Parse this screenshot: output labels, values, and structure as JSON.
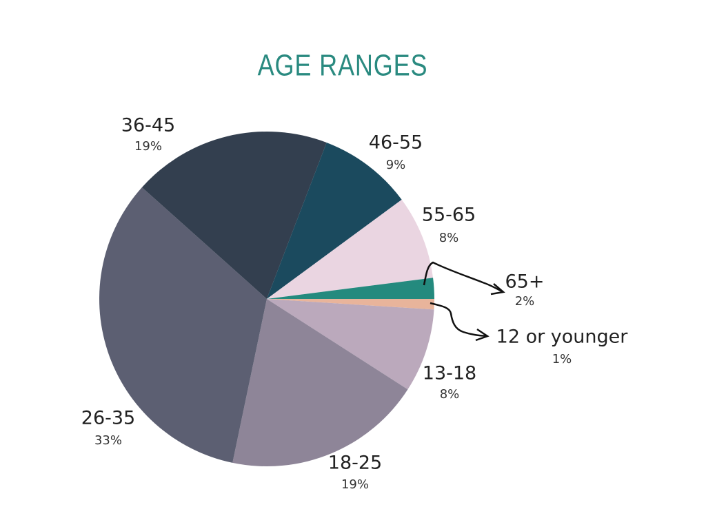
{
  "chart_data": {
    "type": "pie",
    "title": "AGE RANGES",
    "categories": [
      "12 or younger",
      "13-18",
      "18-25",
      "26-35",
      "36-45",
      "46-55",
      "55-65",
      "65+"
    ],
    "values": [
      1,
      8,
      19,
      33,
      19,
      9,
      8,
      2
    ],
    "value_labels": [
      "1%",
      "8%",
      "19%",
      "33%",
      "19%",
      "9%",
      "8%",
      "2%"
    ],
    "colors": [
      "#e8b49b",
      "#bba9bc",
      "#8e8598",
      "#5c5f72",
      "#333f4f",
      "#1b4a5e",
      "#ead5e1",
      "#248a7e"
    ]
  }
}
